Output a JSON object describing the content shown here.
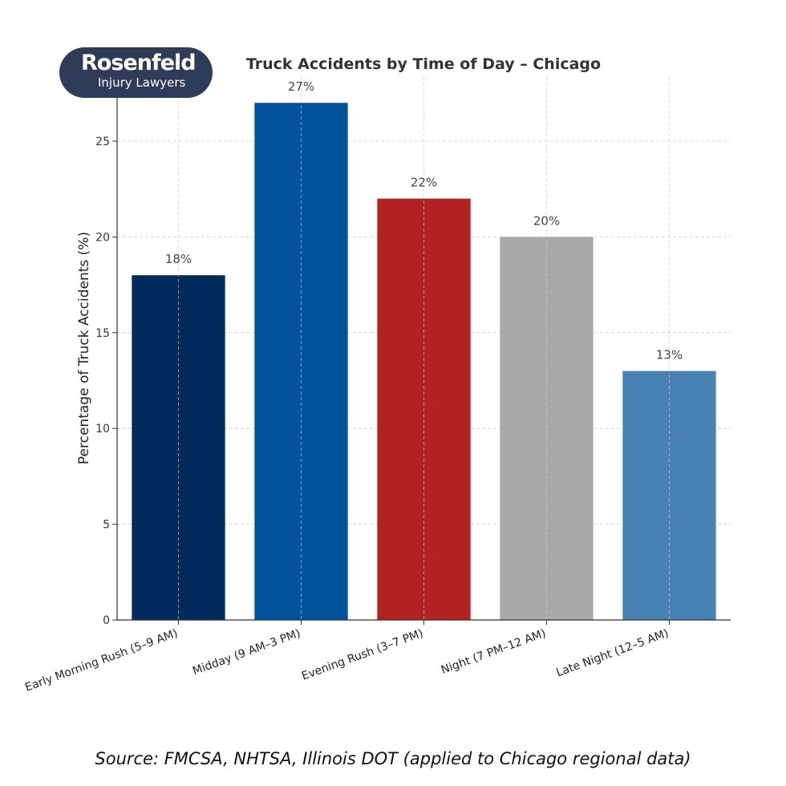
{
  "logo": {
    "name": "Rosenfeld",
    "subtitle": "Injury Lawyers"
  },
  "source_note": "Source: FMCSA, NHTSA, Illinois DOT (applied to Chicago regional data)",
  "chart_data": {
    "type": "bar",
    "title": "Truck Accidents by Time of Day – Chicago",
    "xlabel": "",
    "ylabel": "Percentage of Truck Accidents (%)",
    "categories": [
      "Early Morning Rush (5–9 AM)",
      "Midday (9 AM–3 PM)",
      "Evening Rush (3–7 PM)",
      "Night (7 PM–12 AM)",
      "Late Night (12–5 AM)"
    ],
    "values": [
      18,
      27,
      22,
      20,
      13
    ],
    "data_labels": [
      "18%",
      "27%",
      "22%",
      "20%",
      "13%"
    ],
    "colors": [
      "#002b5c",
      "#00529b",
      "#b22222",
      "#a9a9a9",
      "#4682b4"
    ],
    "ylim": [
      0,
      28.35
    ],
    "yticks": [
      0,
      5,
      10,
      15,
      20,
      25
    ],
    "grid": true,
    "legend": "none"
  }
}
